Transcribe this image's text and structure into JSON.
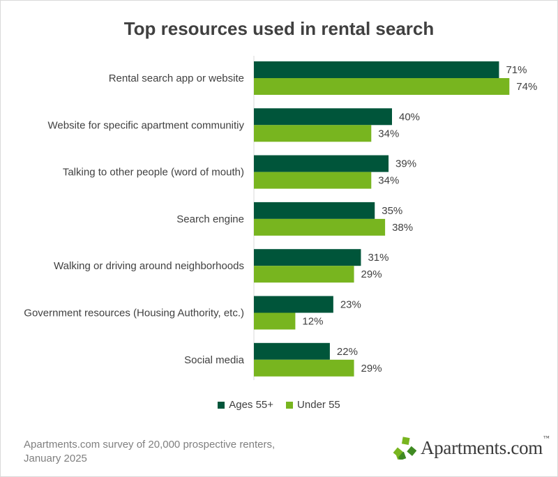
{
  "chart_data": {
    "type": "bar",
    "orientation": "horizontal",
    "title": "Top resources used in rental search",
    "categories": [
      "Rental search app or website",
      "Website for specific apartment communitiy",
      "Talking to other people (word of mouth)",
      "Search engine",
      "Walking or driving around neighborhoods",
      "Government resources (Housing Authority, etc.)",
      "Social media"
    ],
    "series": [
      {
        "name": "Ages 55+",
        "color": "#00553a",
        "values": [
          71,
          40,
          39,
          35,
          31,
          23,
          22
        ]
      },
      {
        "name": "Under 55",
        "color": "#78b51f",
        "values": [
          74,
          34,
          34,
          38,
          29,
          12,
          29
        ]
      }
    ],
    "value_suffix": "%",
    "xlim": [
      0,
      100
    ],
    "grid": false,
    "legend_position": "bottom"
  },
  "footer": {
    "source_line1": "Apartments.com survey of 20,000 prospective renters,",
    "source_line2": "January 2025"
  },
  "logo": {
    "text": "Apartments.com",
    "tm": "™",
    "icon": "apartments-star-logo-icon"
  }
}
